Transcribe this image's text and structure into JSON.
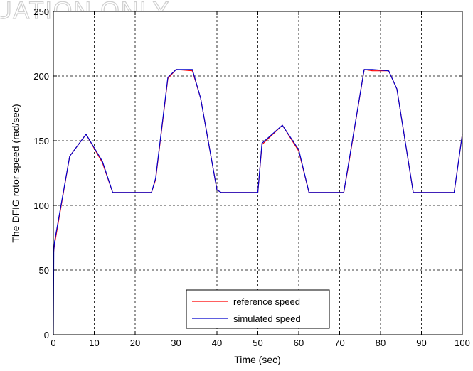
{
  "watermark": "UATION ONLY",
  "chart_data": {
    "type": "line",
    "title": "",
    "xlabel": "Time (sec)",
    "ylabel": "The DFIG rotor speed  (rad/sec)",
    "xlim": [
      0,
      100
    ],
    "ylim": [
      0,
      250
    ],
    "xticks": [
      "0",
      "10",
      "20",
      "30",
      "40",
      "50",
      "60",
      "70",
      "80",
      "90",
      "100"
    ],
    "yticks": [
      "0",
      "50",
      "100",
      "150",
      "200",
      "250"
    ],
    "grid": true,
    "legend_position": "bottom-center",
    "series": [
      {
        "name": "reference speed",
        "color": "#ff0000",
        "x": [
          0,
          0.3,
          4,
          8,
          12,
          14.5,
          24,
          25,
          28,
          30,
          34,
          36,
          40,
          41,
          50,
          51,
          56,
          60,
          62.5,
          71,
          72,
          76,
          78,
          82,
          84,
          88,
          89,
          98,
          100
        ],
        "y": [
          62,
          70,
          138,
          155,
          133,
          110,
          110,
          120,
          198,
          205,
          204,
          183,
          112,
          110,
          110,
          147,
          162,
          142,
          110,
          110,
          128,
          205,
          204,
          204,
          190,
          110,
          110,
          110,
          155
        ]
      },
      {
        "name": "simulated speed",
        "color": "#0000cc",
        "x": [
          0,
          0.1,
          0.3,
          4,
          8,
          12,
          14.5,
          24,
          25,
          28,
          30,
          34,
          36,
          40,
          41,
          50,
          51,
          56,
          60,
          62.5,
          71,
          72,
          76,
          78,
          82,
          84,
          88,
          89,
          98,
          100
        ],
        "y": [
          0,
          65,
          72,
          138,
          155,
          134,
          110,
          110,
          121,
          199,
          205,
          205,
          183,
          112,
          110,
          110,
          148,
          162,
          143,
          110,
          110,
          129,
          205,
          205,
          204,
          190,
          110,
          110,
          110,
          155
        ]
      }
    ]
  }
}
